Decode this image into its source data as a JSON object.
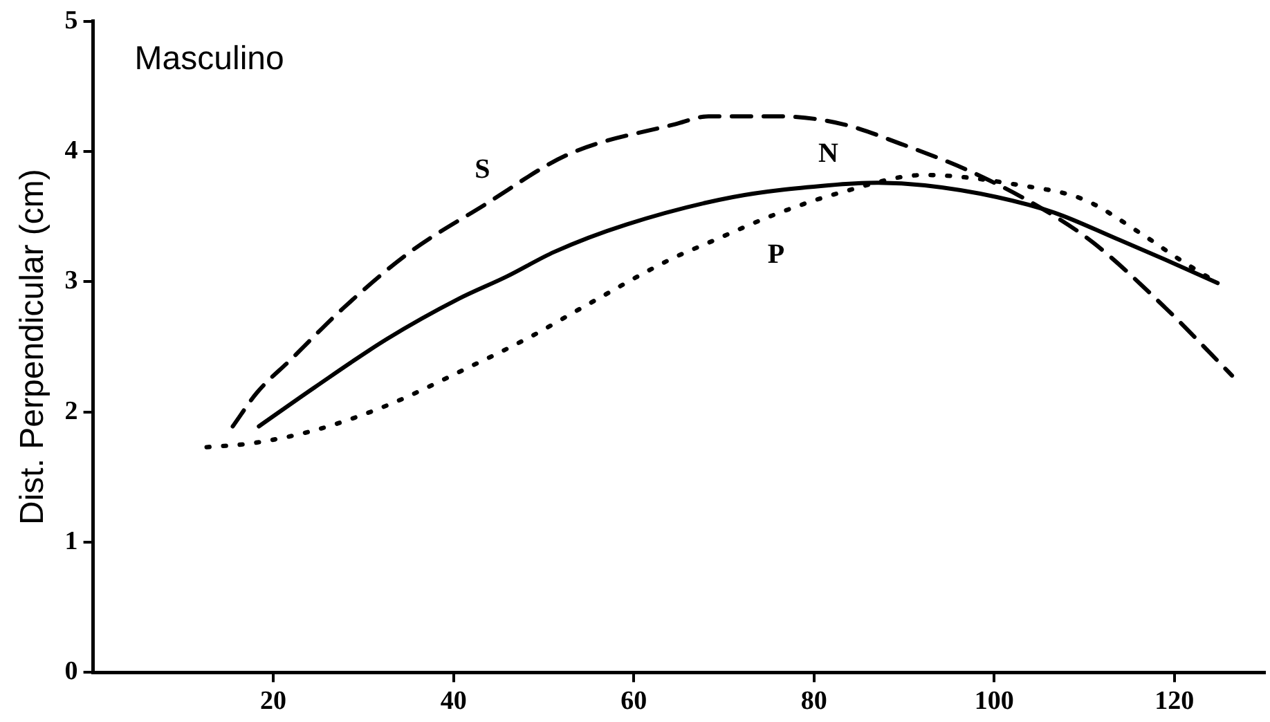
{
  "chart_data": {
    "type": "line",
    "ylabel": "Dist. Perpendicular (cm)",
    "annotations": [
      "Masculino"
    ],
    "xlim": [
      0,
      130
    ],
    "xticks": [
      20,
      40,
      60,
      80,
      100,
      120
    ],
    "ylim": [
      0,
      5
    ],
    "yticks": [
      0,
      1,
      2,
      3,
      4,
      5
    ],
    "grid": false,
    "legend": false,
    "marker": "none",
    "series": [
      {
        "name": "S",
        "color": "#000000",
        "line_style": "dashed",
        "x": [
          15.5,
          18.2,
          21.9,
          27.8,
          35.2,
          43.2,
          52.8,
          64.6,
          68.3,
          76.3,
          83.2,
          89.6,
          97.6,
          105.6,
          111,
          119,
          126.4
        ],
        "values": [
          1.89,
          2.15,
          2.4,
          2.8,
          3.23,
          3.58,
          3.98,
          4.21,
          4.27,
          4.27,
          4.21,
          4.06,
          3.84,
          3.55,
          3.3,
          2.8,
          2.28
        ]
      },
      {
        "name": "N",
        "color": "#000000",
        "line_style": "solid",
        "x": [
          18.4,
          24.6,
          32.6,
          40.6,
          45.9,
          51.2,
          59.2,
          71,
          81.6,
          87,
          92.3,
          100.3,
          106.7,
          113.6,
          119,
          124.8
        ],
        "values": [
          1.89,
          2.19,
          2.56,
          2.87,
          3.04,
          3.23,
          3.44,
          3.65,
          3.74,
          3.76,
          3.74,
          3.65,
          3.53,
          3.33,
          3.17,
          2.99
        ]
      },
      {
        "name": "P",
        "color": "#000000",
        "line_style": "dotted",
        "x": [
          12.6,
          17.6,
          24.6,
          32.6,
          41.6,
          48.6,
          55,
          64,
          68.3,
          75.8,
          82.7,
          92.3,
          103,
          110,
          116.3,
          120.6,
          124.8
        ],
        "values": [
          1.73,
          1.76,
          1.86,
          2.05,
          2.34,
          2.58,
          2.83,
          3.17,
          3.3,
          3.52,
          3.68,
          3.82,
          3.74,
          3.63,
          3.37,
          3.17,
          2.99
        ]
      }
    ]
  }
}
